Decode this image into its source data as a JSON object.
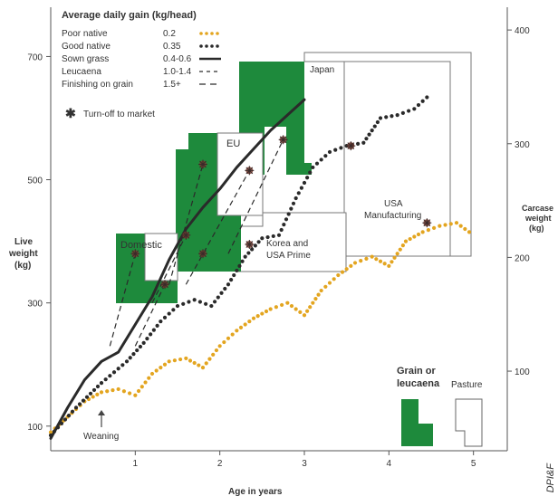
{
  "chart_data": {
    "type": "line",
    "title": "Average daily gain (kg/head)",
    "xlabel": "Age in years",
    "ylabel_left": "Live weight (kg)",
    "ylabel_right": "Carcase weight (kg)",
    "xlim": [
      0,
      5.4
    ],
    "ylim_left": [
      60,
      780
    ],
    "ylim_right": [
      30,
      420
    ],
    "x_ticks": [
      "1",
      "2",
      "3",
      "4",
      "5"
    ],
    "y_ticks_left": [
      "100",
      "300",
      "500",
      "700"
    ],
    "y_ticks_right": [
      "100",
      "200",
      "300",
      "400"
    ],
    "legend": [
      {
        "name": "Poor native",
        "rate": "0.2",
        "color": "#e3a520",
        "style": "dotted"
      },
      {
        "name": "Good native",
        "rate": "0.35",
        "color": "#2a2a2a",
        "style": "dotted"
      },
      {
        "name": "Sown grass",
        "rate": "0.4-0.6",
        "color": "#2a2a2a",
        "style": "solid"
      },
      {
        "name": "Leucaena",
        "rate": "1.0-1.4",
        "color": "#2a2a2a",
        "style": "dashed"
      },
      {
        "name": "Finishing on grain",
        "rate": "1.5+",
        "color": "#2a2a2a",
        "style": "dashed-long"
      }
    ],
    "turnoff_label": "Turn-off to market",
    "series": [
      {
        "name": "Poor native",
        "points": [
          [
            0.0,
            90
          ],
          [
            0.2,
            115
          ],
          [
            0.4,
            140
          ],
          [
            0.6,
            155
          ],
          [
            0.8,
            160
          ],
          [
            1.0,
            150
          ],
          [
            1.2,
            185
          ],
          [
            1.4,
            205
          ],
          [
            1.6,
            210
          ],
          [
            1.8,
            195
          ],
          [
            2.0,
            230
          ],
          [
            2.2,
            255
          ],
          [
            2.4,
            275
          ],
          [
            2.6,
            290
          ],
          [
            2.8,
            300
          ],
          [
            3.0,
            280
          ],
          [
            3.2,
            320
          ],
          [
            3.4,
            345
          ],
          [
            3.6,
            365
          ],
          [
            3.8,
            375
          ],
          [
            4.0,
            360
          ],
          [
            4.2,
            400
          ],
          [
            4.4,
            415
          ],
          [
            4.6,
            425
          ],
          [
            4.8,
            430
          ],
          [
            5.0,
            410
          ]
        ]
      },
      {
        "name": "Good native",
        "points": [
          [
            0.0,
            85
          ],
          [
            0.3,
            130
          ],
          [
            0.6,
            170
          ],
          [
            0.9,
            205
          ],
          [
            1.1,
            235
          ],
          [
            1.3,
            270
          ],
          [
            1.5,
            295
          ],
          [
            1.7,
            305
          ],
          [
            1.9,
            295
          ],
          [
            2.1,
            330
          ],
          [
            2.3,
            375
          ],
          [
            2.5,
            405
          ],
          [
            2.7,
            410
          ],
          [
            2.9,
            470
          ],
          [
            3.1,
            520
          ],
          [
            3.3,
            545
          ],
          [
            3.5,
            555
          ],
          [
            3.7,
            560
          ],
          [
            3.9,
            600
          ],
          [
            4.1,
            605
          ],
          [
            4.3,
            615
          ],
          [
            4.5,
            640
          ]
        ]
      },
      {
        "name": "Sown grass",
        "points": [
          [
            0.0,
            80
          ],
          [
            0.2,
            130
          ],
          [
            0.4,
            175
          ],
          [
            0.6,
            205
          ],
          [
            0.8,
            220
          ],
          [
            1.0,
            265
          ],
          [
            1.2,
            310
          ],
          [
            1.4,
            370
          ],
          [
            1.6,
            420
          ],
          [
            1.8,
            455
          ],
          [
            2.0,
            485
          ],
          [
            2.2,
            520
          ],
          [
            2.4,
            550
          ],
          [
            2.6,
            580
          ],
          [
            2.8,
            605
          ],
          [
            3.0,
            630
          ]
        ]
      }
    ],
    "turnoff_points": [
      [
        1.0,
        380
      ],
      [
        1.35,
        330
      ],
      [
        1.6,
        410
      ],
      [
        1.8,
        380
      ],
      [
        1.8,
        525
      ],
      [
        2.35,
        515
      ],
      [
        2.75,
        565
      ],
      [
        2.35,
        395
      ],
      [
        3.55,
        555
      ],
      [
        4.45,
        430
      ]
    ],
    "regions": [
      {
        "label": "Domestic",
        "kind": "grain"
      },
      {
        "label": "EU",
        "kind": "grain"
      },
      {
        "label": "Japan",
        "kind": "grain"
      },
      {
        "label": "Korea and USA Prime",
        "kind": "pasture"
      },
      {
        "label": "USA Manufacturing",
        "kind": "pasture"
      }
    ],
    "weaning_label": "Weaning",
    "key": {
      "grain_label": "Grain or leucaena",
      "pasture_label": "Pasture"
    },
    "credit": "DPI&F",
    "colors": {
      "grain": "#1e8a3c",
      "poor": "#e3a520",
      "dark": "#2a2a2a"
    }
  }
}
